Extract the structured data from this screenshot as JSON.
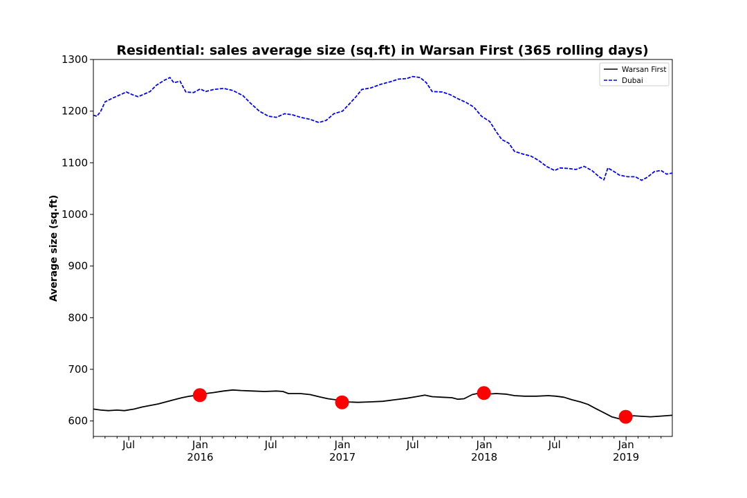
{
  "chart_data": {
    "type": "line",
    "title": "Residential: sales average size (sq.ft) in Warsan First (365 rolling days)",
    "ylabel": "Average size (sq.ft)",
    "xlabel": "",
    "xlim": [
      "2015-04-01",
      "2019-04-30"
    ],
    "ylim": [
      570,
      1300
    ],
    "yticks": [
      600,
      700,
      800,
      900,
      1000,
      1100,
      1200,
      1300
    ],
    "xticks": [
      {
        "date": "2015-07-01",
        "label": "Jul",
        "sub": ""
      },
      {
        "date": "2016-01-01",
        "label": "Jan",
        "sub": "2016"
      },
      {
        "date": "2016-07-01",
        "label": "Jul",
        "sub": ""
      },
      {
        "date": "2017-01-01",
        "label": "Jan",
        "sub": "2017"
      },
      {
        "date": "2017-07-01",
        "label": "Jul",
        "sub": ""
      },
      {
        "date": "2018-01-01",
        "label": "Jan",
        "sub": "2018"
      },
      {
        "date": "2018-07-01",
        "label": "Jul",
        "sub": ""
      },
      {
        "date": "2019-01-01",
        "label": "Jan",
        "sub": "2019"
      }
    ],
    "legend": {
      "position": "top-right"
    },
    "grid": false,
    "series": [
      {
        "name": "Warsan First",
        "color": "#000000",
        "style": "solid",
        "points": [
          [
            "2015-04-01",
            623
          ],
          [
            "2015-04-20",
            621
          ],
          [
            "2015-05-10",
            620
          ],
          [
            "2015-06-01",
            621
          ],
          [
            "2015-06-20",
            620
          ],
          [
            "2015-07-15",
            623
          ],
          [
            "2015-08-05",
            627
          ],
          [
            "2015-08-25",
            630
          ],
          [
            "2015-09-15",
            633
          ],
          [
            "2015-10-05",
            637
          ],
          [
            "2015-10-25",
            641
          ],
          [
            "2015-11-15",
            645
          ],
          [
            "2015-12-05",
            648
          ],
          [
            "2015-12-25",
            650
          ],
          [
            "2016-01-15",
            653
          ],
          [
            "2016-02-05",
            655
          ],
          [
            "2016-03-01",
            658
          ],
          [
            "2016-03-25",
            660
          ],
          [
            "2016-04-15",
            659
          ],
          [
            "2016-05-15",
            658
          ],
          [
            "2016-06-15",
            657
          ],
          [
            "2016-07-15",
            658
          ],
          [
            "2016-08-01",
            657
          ],
          [
            "2016-08-15",
            653
          ],
          [
            "2016-09-15",
            653
          ],
          [
            "2016-10-10",
            651
          ],
          [
            "2016-11-01",
            647
          ],
          [
            "2016-11-25",
            643
          ],
          [
            "2016-12-15",
            641
          ],
          [
            "2017-01-10",
            637
          ],
          [
            "2017-02-10",
            636
          ],
          [
            "2017-03-15",
            637
          ],
          [
            "2017-04-15",
            638
          ],
          [
            "2017-05-15",
            641
          ],
          [
            "2017-06-15",
            644
          ],
          [
            "2017-07-10",
            647
          ],
          [
            "2017-08-01",
            650
          ],
          [
            "2017-08-20",
            647
          ],
          [
            "2017-09-15",
            646
          ],
          [
            "2017-10-10",
            645
          ],
          [
            "2017-10-25",
            642
          ],
          [
            "2017-11-10",
            643
          ],
          [
            "2017-12-01",
            651
          ],
          [
            "2017-12-20",
            654
          ],
          [
            "2018-01-10",
            652
          ],
          [
            "2018-02-01",
            653
          ],
          [
            "2018-02-25",
            652
          ],
          [
            "2018-03-20",
            649
          ],
          [
            "2018-04-15",
            648
          ],
          [
            "2018-05-15",
            648
          ],
          [
            "2018-06-15",
            649
          ],
          [
            "2018-07-05",
            648
          ],
          [
            "2018-07-25",
            646
          ],
          [
            "2018-08-15",
            641
          ],
          [
            "2018-09-05",
            637
          ],
          [
            "2018-09-25",
            632
          ],
          [
            "2018-10-15",
            624
          ],
          [
            "2018-11-05",
            616
          ],
          [
            "2018-11-25",
            608
          ],
          [
            "2018-12-15",
            604
          ],
          [
            "2019-01-01",
            607
          ],
          [
            "2019-01-20",
            610
          ],
          [
            "2019-02-10",
            609
          ],
          [
            "2019-03-05",
            608
          ],
          [
            "2019-03-25",
            609
          ],
          [
            "2019-04-30",
            611
          ]
        ]
      },
      {
        "name": "Dubai",
        "color": "#0000ff",
        "style": "dashed",
        "points": [
          [
            "2015-04-01",
            1192
          ],
          [
            "2015-04-10",
            1190
          ],
          [
            "2015-04-20",
            1200
          ],
          [
            "2015-05-01",
            1218
          ],
          [
            "2015-05-20",
            1225
          ],
          [
            "2015-06-10",
            1232
          ],
          [
            "2015-06-25",
            1237
          ],
          [
            "2015-07-10",
            1232
          ],
          [
            "2015-07-25",
            1228
          ],
          [
            "2015-08-10",
            1233
          ],
          [
            "2015-08-25",
            1238
          ],
          [
            "2015-09-10",
            1250
          ],
          [
            "2015-10-01",
            1260
          ],
          [
            "2015-10-15",
            1265
          ],
          [
            "2015-10-25",
            1255
          ],
          [
            "2015-11-10",
            1258
          ],
          [
            "2015-11-25",
            1237
          ],
          [
            "2015-12-15",
            1236
          ],
          [
            "2016-01-01",
            1243
          ],
          [
            "2016-01-15",
            1238
          ],
          [
            "2016-02-05",
            1242
          ],
          [
            "2016-03-01",
            1244
          ],
          [
            "2016-03-25",
            1240
          ],
          [
            "2016-04-20",
            1230
          ],
          [
            "2016-05-10",
            1215
          ],
          [
            "2016-06-01",
            1200
          ],
          [
            "2016-06-25",
            1190
          ],
          [
            "2016-07-15",
            1188
          ],
          [
            "2016-08-05",
            1195
          ],
          [
            "2016-08-25",
            1193
          ],
          [
            "2016-09-15",
            1188
          ],
          [
            "2016-10-10",
            1184
          ],
          [
            "2016-11-01",
            1178
          ],
          [
            "2016-11-20",
            1182
          ],
          [
            "2016-12-10",
            1195
          ],
          [
            "2017-01-01",
            1200
          ],
          [
            "2017-01-20",
            1215
          ],
          [
            "2017-02-05",
            1228
          ],
          [
            "2017-02-20",
            1242
          ],
          [
            "2017-03-15",
            1245
          ],
          [
            "2017-04-10",
            1252
          ],
          [
            "2017-05-05",
            1257
          ],
          [
            "2017-05-25",
            1262
          ],
          [
            "2017-06-15",
            1263
          ],
          [
            "2017-07-01",
            1267
          ],
          [
            "2017-07-20",
            1265
          ],
          [
            "2017-08-05",
            1255
          ],
          [
            "2017-08-20",
            1238
          ],
          [
            "2017-09-15",
            1237
          ],
          [
            "2017-10-05",
            1232
          ],
          [
            "2017-10-25",
            1224
          ],
          [
            "2017-11-15",
            1217
          ],
          [
            "2017-12-05",
            1208
          ],
          [
            "2017-12-25",
            1190
          ],
          [
            "2018-01-15",
            1180
          ],
          [
            "2018-02-01",
            1160
          ],
          [
            "2018-02-15",
            1145
          ],
          [
            "2018-03-05",
            1138
          ],
          [
            "2018-03-20",
            1122
          ],
          [
            "2018-04-10",
            1117
          ],
          [
            "2018-05-01",
            1113
          ],
          [
            "2018-05-20",
            1105
          ],
          [
            "2018-06-10",
            1093
          ],
          [
            "2018-07-01",
            1085
          ],
          [
            "2018-07-15",
            1090
          ],
          [
            "2018-08-05",
            1089
          ],
          [
            "2018-08-25",
            1087
          ],
          [
            "2018-09-15",
            1093
          ],
          [
            "2018-10-05",
            1085
          ],
          [
            "2018-10-25",
            1072
          ],
          [
            "2018-11-05",
            1067
          ],
          [
            "2018-11-15",
            1090
          ],
          [
            "2018-12-01",
            1083
          ],
          [
            "2018-12-15",
            1076
          ],
          [
            "2019-01-05",
            1073
          ],
          [
            "2019-01-25",
            1073
          ],
          [
            "2019-02-10",
            1066
          ],
          [
            "2019-02-25",
            1072
          ],
          [
            "2019-03-15",
            1083
          ],
          [
            "2019-04-01",
            1085
          ],
          [
            "2019-04-15",
            1078
          ],
          [
            "2019-04-30",
            1080
          ]
        ]
      }
    ],
    "markers": {
      "color": "#ff0000",
      "points": [
        [
          "2015-12-31",
          650
        ],
        [
          "2016-12-31",
          636
        ],
        [
          "2017-12-31",
          654
        ],
        [
          "2018-12-31",
          608
        ]
      ]
    }
  }
}
